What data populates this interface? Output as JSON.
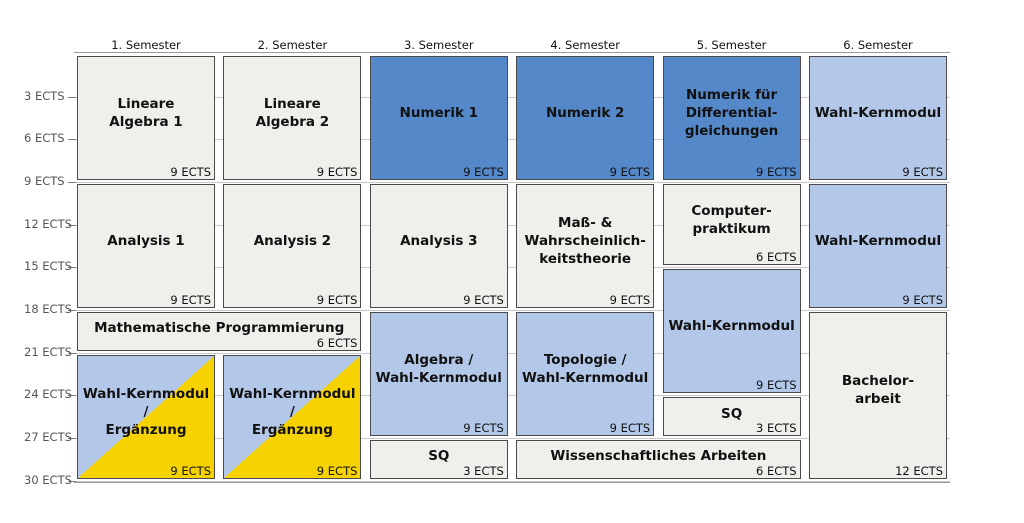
{
  "semesters": [
    "1. Semester",
    "2. Semester",
    "3. Semester",
    "4. Semester",
    "5. Semester",
    "6. Semester"
  ],
  "y_axis_labels": [
    "3 ECTS",
    "6 ECTS",
    "9 ECTS",
    "12 ECTS",
    "15 ECTS",
    "18 ECTS",
    "21 ECTS",
    "24 ECTS",
    "27 ECTS",
    "30 ECTS"
  ],
  "colors": {
    "pflicht": "#eef0ec",
    "numerik": "#5588c8",
    "wahl": "#b3c8e8",
    "ergaenzung": "#f6d300"
  },
  "modules": [
    {
      "title": "Lineare\nAlgebra 1",
      "ects": "9 ECTS",
      "col": 1,
      "span": 1,
      "start": 0,
      "size": 9,
      "style": "gray"
    },
    {
      "title": "Lineare\nAlgebra 2",
      "ects": "9 ECTS",
      "col": 2,
      "span": 1,
      "start": 0,
      "size": 9,
      "style": "gray"
    },
    {
      "title": "Numerik 1",
      "ects": "9 ECTS",
      "col": 3,
      "span": 1,
      "start": 0,
      "size": 9,
      "style": "dark"
    },
    {
      "title": "Numerik 2",
      "ects": "9 ECTS",
      "col": 4,
      "span": 1,
      "start": 0,
      "size": 9,
      "style": "dark"
    },
    {
      "title": "Numerik für\nDifferential-\ngleichungen",
      "ects": "9 ECTS",
      "col": 5,
      "span": 1,
      "start": 0,
      "size": 9,
      "style": "dark"
    },
    {
      "title": "Wahl-Kernmodul",
      "ects": "9 ECTS",
      "col": 6,
      "span": 1,
      "start": 0,
      "size": 9,
      "style": "light"
    },
    {
      "title": "Analysis 1",
      "ects": "9 ECTS",
      "col": 1,
      "span": 1,
      "start": 9,
      "size": 9,
      "style": "gray"
    },
    {
      "title": "Analysis 2",
      "ects": "9 ECTS",
      "col": 2,
      "span": 1,
      "start": 9,
      "size": 9,
      "style": "gray"
    },
    {
      "title": "Analysis 3",
      "ects": "9 ECTS",
      "col": 3,
      "span": 1,
      "start": 9,
      "size": 9,
      "style": "gray"
    },
    {
      "title": "Maß- &\nWahrscheinlich-\nkeitstheorie",
      "ects": "9 ECTS",
      "col": 4,
      "span": 1,
      "start": 9,
      "size": 9,
      "style": "gray"
    },
    {
      "title": "Computer-\npraktikum",
      "ects": "6 ECTS",
      "col": 5,
      "span": 1,
      "start": 9,
      "size": 6,
      "style": "gray"
    },
    {
      "title": "Wahl-Kernmodul",
      "ects": "9 ECTS",
      "col": 6,
      "span": 1,
      "start": 9,
      "size": 9,
      "style": "light"
    },
    {
      "title": "Mathematische Programmierung",
      "ects": "6 ECTS",
      "col": 1,
      "span": 2,
      "start": 18,
      "size": 3,
      "style": "gray"
    },
    {
      "title": "Wahl-Kernmodul /\nErgänzung",
      "ects": "9 ECTS",
      "col": 1,
      "span": 1,
      "start": 21,
      "size": 9,
      "style": "split"
    },
    {
      "title": "Wahl-Kernmodul /\nErgänzung",
      "ects": "9 ECTS",
      "col": 2,
      "span": 1,
      "start": 21,
      "size": 9,
      "style": "split"
    },
    {
      "title": "Algebra /\nWahl-Kernmodul",
      "ects": "9 ECTS",
      "col": 3,
      "span": 1,
      "start": 18,
      "size": 9,
      "style": "light"
    },
    {
      "title": "Topologie /\nWahl-Kernmodul",
      "ects": "9 ECTS",
      "col": 4,
      "span": 1,
      "start": 18,
      "size": 9,
      "style": "light"
    },
    {
      "title": "Wahl-Kernmodul",
      "ects": "9 ECTS",
      "col": 5,
      "span": 1,
      "start": 15,
      "size": 9,
      "style": "light"
    },
    {
      "title": "SQ",
      "ects": "3 ECTS",
      "col": 5,
      "span": 1,
      "start": 24,
      "size": 3,
      "style": "gray"
    },
    {
      "title": "Bachelor-\narbeit",
      "ects": "12 ECTS",
      "col": 6,
      "span": 1,
      "start": 18,
      "size": 12,
      "style": "gray"
    },
    {
      "title": "SQ",
      "ects": "3 ECTS",
      "col": 3,
      "span": 1,
      "start": 27,
      "size": 3,
      "style": "gray"
    },
    {
      "title": "Wissenschaftliches Arbeiten",
      "ects": "6 ECTS",
      "col": 4,
      "span": 2,
      "start": 27,
      "size": 3,
      "style": "gray"
    }
  ]
}
